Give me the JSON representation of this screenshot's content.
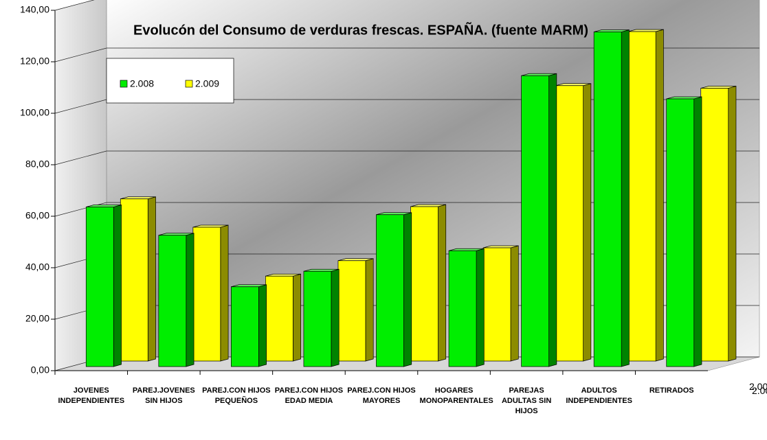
{
  "chart_data": {
    "type": "bar3d",
    "title": "Evolucón del Consumo de verduras frescas. ESPAÑA. (fuente MARM)",
    "categories": [
      "JOVENES INDEPENDIENTES",
      "PAREJ.JOVENES SIN HIJOS",
      "PAREJ.CON HIJOS PEQUEÑOS",
      "PAREJ.CON HIJOS EDAD MEDIA",
      "PAREJ.CON HIJOS MAYORES",
      "HOGARES MONOPARENTALES",
      "PAREJAS ADULTAS SIN HIJOS",
      "ADULTOS INDEPENDIENTES",
      "RETIRADOS"
    ],
    "series": [
      {
        "name": "2.008",
        "color": "#00ee00",
        "values": [
          62,
          51,
          31,
          37,
          59,
          45,
          113,
          130,
          104
        ]
      },
      {
        "name": "2.009",
        "color": "#ffff00",
        "values": [
          63,
          52,
          33,
          39,
          60,
          44,
          107,
          128,
          106
        ]
      }
    ],
    "ylim": [
      0,
      140
    ],
    "yticks": [
      {
        "value": 0,
        "label": "0,00"
      },
      {
        "value": 20,
        "label": "20,00"
      },
      {
        "value": 40,
        "label": "40,00"
      },
      {
        "value": 60,
        "label": "60,00"
      },
      {
        "value": 80,
        "label": "80,00"
      },
      {
        "value": 100,
        "label": "100,00"
      },
      {
        "value": 120,
        "label": "120,00"
      },
      {
        "value": 140,
        "label": "140,00"
      }
    ],
    "grid": true
  }
}
